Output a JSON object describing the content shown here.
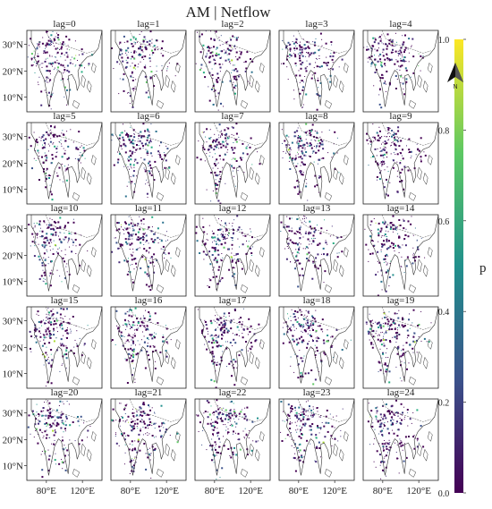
{
  "figure": {
    "title": "AM | Netflow"
  },
  "panels": [
    {
      "label": "lag=0"
    },
    {
      "label": "lag=1"
    },
    {
      "label": "lag=2"
    },
    {
      "label": "lag=3"
    },
    {
      "label": "lag=4"
    },
    {
      "label": "lag=5"
    },
    {
      "label": "lag=6"
    },
    {
      "label": "lag=7"
    },
    {
      "label": "lag=8"
    },
    {
      "label": "lag=9"
    },
    {
      "label": "lag=10"
    },
    {
      "label": "lag=11"
    },
    {
      "label": "lag=12"
    },
    {
      "label": "lag=13"
    },
    {
      "label": "lag=14"
    },
    {
      "label": "lag=15"
    },
    {
      "label": "lag=16"
    },
    {
      "label": "lag=17"
    },
    {
      "label": "lag=18"
    },
    {
      "label": "lag=19"
    },
    {
      "label": "lag=20"
    },
    {
      "label": "lag=21"
    },
    {
      "label": "lag=22"
    },
    {
      "label": "lag=23"
    },
    {
      "label": "lag=24"
    }
  ],
  "axes": {
    "y_tick_labels": [
      "30°N",
      "20°N",
      "10°N"
    ],
    "x_tick_labels": [
      "80°E",
      "120°E"
    ]
  },
  "colorbar": {
    "label": "p",
    "ticks": [
      "1.0",
      "0.8",
      "0.6",
      "0.4",
      "0.2",
      "0.0"
    ],
    "colors": [
      "#440154",
      "#3b528b",
      "#21908c",
      "#5dc863",
      "#fde725"
    ]
  },
  "north_arrow": {
    "label": "N"
  }
}
